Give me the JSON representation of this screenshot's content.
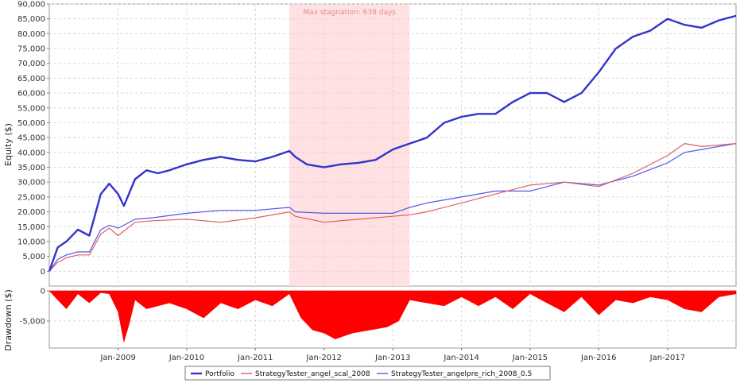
{
  "chart_data": [
    {
      "type": "line",
      "panel": "equity",
      "ylabel": "Equity ($)",
      "ylim": [
        -5000,
        90000
      ],
      "yticks": [
        0,
        5000,
        10000,
        15000,
        20000,
        25000,
        30000,
        35000,
        40000,
        45000,
        50000,
        55000,
        60000,
        65000,
        70000,
        75000,
        80000,
        85000,
        90000
      ],
      "ytick_labels": [
        "0",
        "5,000",
        "10,000",
        "15,000",
        "20,000",
        "25,000",
        "30,000",
        "35,000",
        "40,000",
        "45,000",
        "50,000",
        "55,000",
        "60,000",
        "65,000",
        "70,000",
        "75,000",
        "80,000",
        "85,000",
        "90,000"
      ],
      "xlim": [
        "2008-01-01",
        "2017-12-31"
      ],
      "grid": true,
      "annotation": {
        "text": "Max stagnation: 638 days",
        "start": "2011-07-01",
        "end": "2013-03-31",
        "color": "#ffe0e3"
      },
      "series": [
        {
          "name": "Portfolio",
          "color": "#3333cc",
          "x": [
            "2008-01-01",
            "2008-02-15",
            "2008-04-01",
            "2008-06-01",
            "2008-08-01",
            "2008-10-01",
            "2008-11-15",
            "2009-01-01",
            "2009-02-01",
            "2009-04-01",
            "2009-06-01",
            "2009-08-01",
            "2009-10-01",
            "2010-01-01",
            "2010-04-01",
            "2010-07-01",
            "2010-10-01",
            "2011-01-01",
            "2011-04-01",
            "2011-07-01",
            "2011-08-01",
            "2011-10-01",
            "2012-01-01",
            "2012-04-01",
            "2012-07-01",
            "2012-10-01",
            "2013-01-01",
            "2013-04-01",
            "2013-07-01",
            "2013-10-01",
            "2014-01-01",
            "2014-04-01",
            "2014-07-01",
            "2014-10-01",
            "2015-01-01",
            "2015-04-01",
            "2015-07-01",
            "2015-10-01",
            "2016-01-01",
            "2016-04-01",
            "2016-07-01",
            "2016-10-01",
            "2017-01-01",
            "2017-04-01",
            "2017-07-01",
            "2017-10-01",
            "2017-12-31"
          ],
          "values": [
            0,
            8000,
            10000,
            14000,
            12000,
            26000,
            29500,
            26000,
            22000,
            31000,
            34000,
            33000,
            34000,
            36000,
            37500,
            38500,
            37500,
            37000,
            38500,
            40500,
            38500,
            36000,
            35000,
            36000,
            36500,
            37500,
            41000,
            43000,
            45000,
            50000,
            52000,
            53000,
            53000,
            57000,
            60000,
            60000,
            57000,
            60000,
            67000,
            75000,
            79000,
            81000,
            85000,
            83000,
            82000,
            84500,
            86000
          ]
        },
        {
          "name": "StrategyTester_angel_scal_2008",
          "color": "#e06060",
          "x": [
            "2008-01-01",
            "2008-02-15",
            "2008-04-01",
            "2008-06-01",
            "2008-08-01",
            "2008-10-01",
            "2008-11-15",
            "2009-01-01",
            "2009-04-01",
            "2009-07-01",
            "2010-01-01",
            "2010-07-01",
            "2011-01-01",
            "2011-07-01",
            "2011-08-01",
            "2012-01-01",
            "2012-07-01",
            "2013-01-01",
            "2013-04-01",
            "2013-07-01",
            "2014-01-01",
            "2014-07-01",
            "2015-01-01",
            "2015-07-01",
            "2016-01-01",
            "2016-07-01",
            "2017-01-01",
            "2017-04-01",
            "2017-07-01",
            "2017-12-31"
          ],
          "values": [
            0,
            3000,
            4500,
            5500,
            5500,
            12500,
            14500,
            12000,
            16500,
            17000,
            17500,
            16500,
            18000,
            20000,
            18500,
            16500,
            17500,
            18500,
            19000,
            20000,
            23000,
            26000,
            29000,
            30000,
            28500,
            33000,
            39000,
            43000,
            42000,
            43000
          ]
        },
        {
          "name": "StrategyTester_angelpre_rich_2008_0.5",
          "color": "#5555ee",
          "x": [
            "2008-01-01",
            "2008-02-15",
            "2008-04-01",
            "2008-06-01",
            "2008-08-01",
            "2008-10-01",
            "2008-11-15",
            "2009-01-01",
            "2009-04-01",
            "2009-07-01",
            "2010-01-01",
            "2010-07-01",
            "2011-01-01",
            "2011-07-01",
            "2011-08-01",
            "2012-01-01",
            "2012-07-01",
            "2013-01-01",
            "2013-04-01",
            "2013-07-01",
            "2014-01-01",
            "2014-07-01",
            "2015-01-01",
            "2015-07-01",
            "2016-01-01",
            "2016-07-01",
            "2017-01-01",
            "2017-04-01",
            "2017-07-01",
            "2017-12-31"
          ],
          "values": [
            0,
            4000,
            5500,
            6500,
            6500,
            14000,
            15500,
            14500,
            17500,
            18000,
            19500,
            20500,
            20500,
            21500,
            20000,
            19500,
            19500,
            19500,
            21500,
            23000,
            25000,
            27000,
            27000,
            30000,
            29000,
            32000,
            36500,
            40000,
            41000,
            43000
          ]
        }
      ]
    },
    {
      "type": "area",
      "panel": "drawdown",
      "ylabel": "Drawdown ($)",
      "ylim": [
        -9500,
        0
      ],
      "yticks": [
        0,
        -5000
      ],
      "ytick_labels": [
        "0",
        "-5,000"
      ],
      "xlim": [
        "2008-01-01",
        "2017-12-31"
      ],
      "xticks": [
        "2009-01-01",
        "2010-01-01",
        "2011-01-01",
        "2012-01-01",
        "2013-01-01",
        "2014-01-01",
        "2015-01-01",
        "2016-01-01",
        "2017-01-01"
      ],
      "xtick_labels": [
        "Jan-2009",
        "Jan-2010",
        "Jan-2011",
        "Jan-2012",
        "Jan-2013",
        "Jan-2014",
        "Jan-2015",
        "Jan-2016",
        "Jan-2017"
      ],
      "grid": true,
      "series": [
        {
          "color": "#ff0000",
          "x": [
            "2008-01-01",
            "2008-02-15",
            "2008-04-01",
            "2008-06-01",
            "2008-08-01",
            "2008-10-01",
            "2008-11-15",
            "2009-01-01",
            "2009-02-01",
            "2009-03-01",
            "2009-04-01",
            "2009-06-01",
            "2009-08-01",
            "2009-10-01",
            "2010-01-01",
            "2010-04-01",
            "2010-07-01",
            "2010-10-01",
            "2011-01-01",
            "2011-04-01",
            "2011-07-01",
            "2011-09-01",
            "2011-11-01",
            "2012-01-01",
            "2012-03-01",
            "2012-06-01",
            "2012-09-01",
            "2012-12-01",
            "2013-02-01",
            "2013-04-01",
            "2013-07-01",
            "2013-10-01",
            "2014-01-01",
            "2014-04-01",
            "2014-07-01",
            "2014-10-01",
            "2015-01-01",
            "2015-04-01",
            "2015-07-01",
            "2015-10-01",
            "2016-01-01",
            "2016-04-01",
            "2016-07-01",
            "2016-10-01",
            "2017-01-01",
            "2017-04-01",
            "2017-07-01",
            "2017-10-01",
            "2017-12-31"
          ],
          "values": [
            0,
            -1500,
            -3000,
            -500,
            -2000,
            -300,
            -500,
            -3500,
            -8500,
            -5500,
            -1500,
            -3000,
            -2500,
            -2000,
            -3000,
            -4500,
            -2000,
            -3000,
            -1500,
            -2500,
            -500,
            -4500,
            -6500,
            -7000,
            -8000,
            -7000,
            -6500,
            -6000,
            -5000,
            -1500,
            -2000,
            -2500,
            -1000,
            -2500,
            -1000,
            -3000,
            -500,
            -2000,
            -3500,
            -1000,
            -4000,
            -1500,
            -2000,
            -1000,
            -1500,
            -3000,
            -3500,
            -1000,
            -500
          ]
        }
      ]
    }
  ]
}
